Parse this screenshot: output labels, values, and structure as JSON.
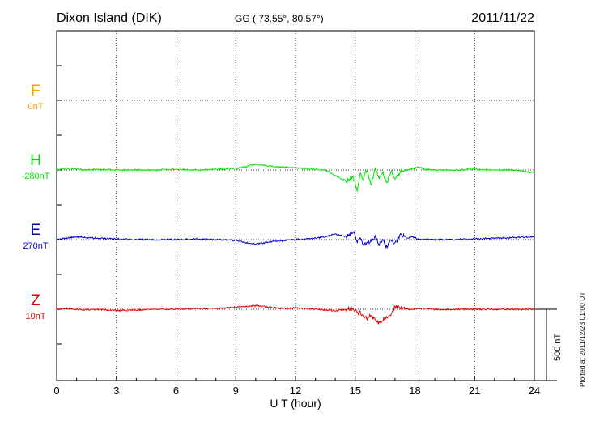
{
  "chart_data": {
    "type": "line",
    "title": "Dixon Island (DIK)",
    "subtitle": "GG ( 73.55°,  80.57°)",
    "date": "2011/11/22",
    "xlabel": "U T (hour)",
    "xlim": [
      0,
      24
    ],
    "x_ticks": [
      "0",
      "3",
      "6",
      "9",
      "12",
      "15",
      "18",
      "21",
      "24"
    ],
    "grid": true,
    "scale_label": "500 nT",
    "plotted_note": "Plotted at 2011/12/23 01:00 UT",
    "series": [
      {
        "name": "F",
        "baseline": "0nT",
        "color": "#f5a500",
        "x": [],
        "y": []
      },
      {
        "name": "H",
        "baseline": "-280nT",
        "color": "#00e000",
        "x": [
          0,
          0.5,
          1,
          1.5,
          2,
          3,
          4,
          5,
          6,
          7,
          8,
          9,
          9.5,
          10,
          10.3,
          10.6,
          11,
          11.5,
          12,
          12.5,
          13,
          13.5,
          14,
          14.3,
          14.6,
          14.9,
          15.1,
          15.25,
          15.4,
          15.6,
          15.8,
          16,
          16.2,
          16.4,
          16.6,
          16.8,
          17,
          17.3,
          17.6,
          17.9,
          18.2,
          18.5,
          19,
          20,
          21,
          22,
          23,
          24
        ],
        "y": [
          0,
          10,
          5,
          0,
          5,
          0,
          0,
          0,
          5,
          0,
          5,
          10,
          25,
          40,
          35,
          30,
          25,
          20,
          15,
          10,
          5,
          0,
          -40,
          -60,
          -80,
          -40,
          -150,
          -20,
          -60,
          0,
          -100,
          10,
          -60,
          -20,
          -90,
          0,
          -60,
          -10,
          0,
          10,
          20,
          5,
          0,
          0,
          5,
          0,
          0,
          -20
        ]
      },
      {
        "name": "E",
        "baseline": "270nT",
        "color": "#0000cc",
        "x": [
          0,
          0.5,
          1,
          1.5,
          2,
          3,
          4,
          5,
          6,
          7,
          8,
          9,
          9.5,
          10,
          10.3,
          10.6,
          11,
          11.5,
          12,
          12.5,
          13,
          13.5,
          14,
          14.3,
          14.6,
          14.9,
          15.1,
          15.25,
          15.4,
          15.6,
          15.8,
          16,
          16.2,
          16.4,
          16.6,
          16.8,
          17,
          17.3,
          17.6,
          17.9,
          18.2,
          18.5,
          19,
          20,
          21,
          22,
          23,
          24
        ],
        "y": [
          0,
          10,
          20,
          15,
          10,
          5,
          0,
          0,
          0,
          5,
          0,
          -5,
          -20,
          -30,
          -25,
          -20,
          -10,
          -5,
          0,
          5,
          10,
          20,
          40,
          30,
          20,
          60,
          -10,
          20,
          -40,
          -20,
          -10,
          20,
          -40,
          0,
          -60,
          10,
          -30,
          40,
          10,
          20,
          0,
          5,
          0,
          0,
          5,
          10,
          15,
          20
        ]
      },
      {
        "name": "Z",
        "baseline": "10nT",
        "color": "#e00000",
        "x": [
          0,
          0.5,
          1,
          1.5,
          2,
          3,
          4,
          5,
          6,
          7,
          8,
          9,
          9.5,
          10,
          10.3,
          10.6,
          11,
          11.5,
          12,
          12.5,
          13,
          13.5,
          14,
          14.3,
          14.6,
          14.9,
          15.1,
          15.25,
          15.4,
          15.6,
          15.8,
          16,
          16.2,
          16.4,
          16.6,
          16.8,
          17,
          17.3,
          17.6,
          17.9,
          18.2,
          18.5,
          19,
          20,
          21,
          22,
          23,
          24
        ],
        "y": [
          0,
          5,
          0,
          -5,
          0,
          -10,
          -5,
          0,
          0,
          5,
          5,
          15,
          20,
          25,
          20,
          15,
          10,
          5,
          10,
          5,
          0,
          -5,
          -10,
          -5,
          0,
          10,
          -30,
          -20,
          -50,
          -60,
          -40,
          -80,
          -100,
          -70,
          -60,
          -40,
          20,
          10,
          0,
          0,
          5,
          5,
          0,
          0,
          0,
          0,
          0,
          0
        ]
      }
    ]
  }
}
